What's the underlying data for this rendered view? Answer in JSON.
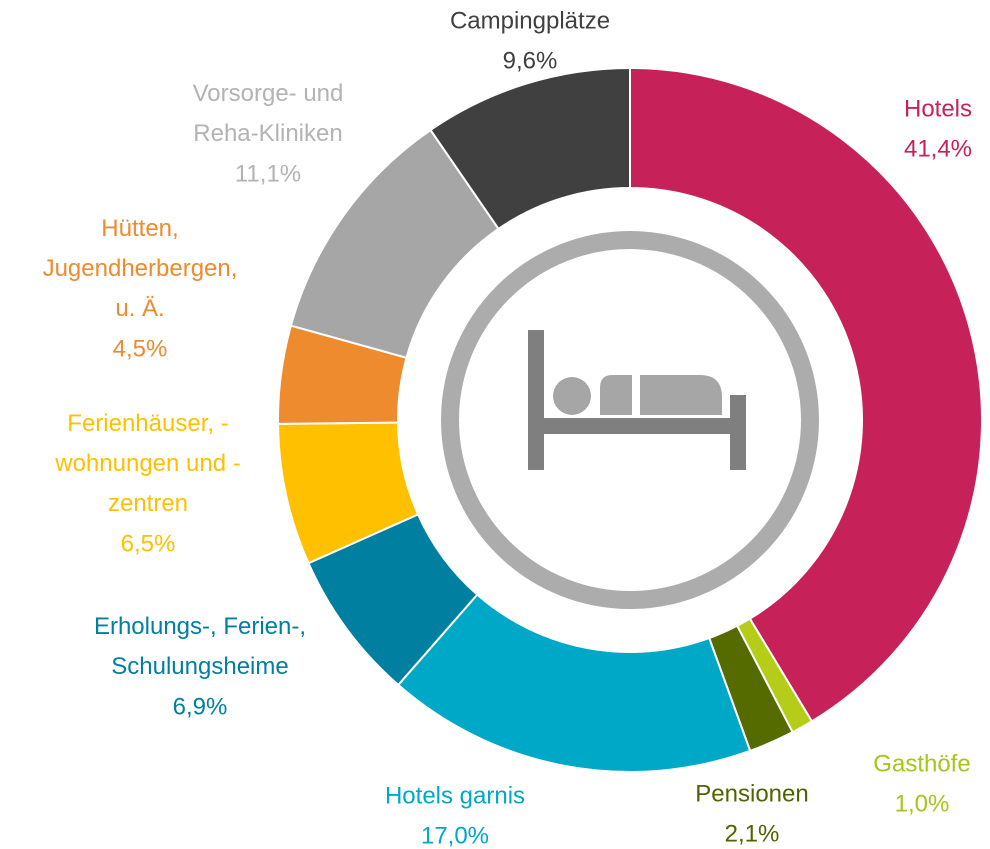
{
  "chart_data": {
    "type": "donut",
    "categories": [
      "Hotels",
      "Gasthöfe",
      "Pensionen",
      "Hotels garnis",
      "Erholungs-, Ferien-,\nSchulungsheime",
      "Ferienhäuser, -\nwohnungen und -\nzentren",
      "Hütten,\nJugendherbergen,\nu. Ä.",
      "Vorsorge- und\nReha-Kliniken",
      "Campingplätze"
    ],
    "values": [
      41.4,
      1.0,
      2.1,
      17.0,
      6.9,
      6.5,
      4.5,
      11.1,
      9.6
    ],
    "value_labels": [
      "41,4%",
      "1,0%",
      "2,1%",
      "17,0%",
      "6,9%",
      "6,5%",
      "4,5%",
      "11,1%",
      "9,6%"
    ],
    "colors": [
      "#c7215a",
      "#b5cc18",
      "#556b00",
      "#00a8c8",
      "#007fa0",
      "#ffc000",
      "#ed8b2e",
      "#a6a6a6",
      "#404040"
    ],
    "label_colors": [
      "#c7215a",
      "#a9c41a",
      "#4f6300",
      "#00a8c8",
      "#007fa0",
      "#ffc000",
      "#ed8b2e",
      "#b3b3b3",
      "#404040"
    ]
  }
}
